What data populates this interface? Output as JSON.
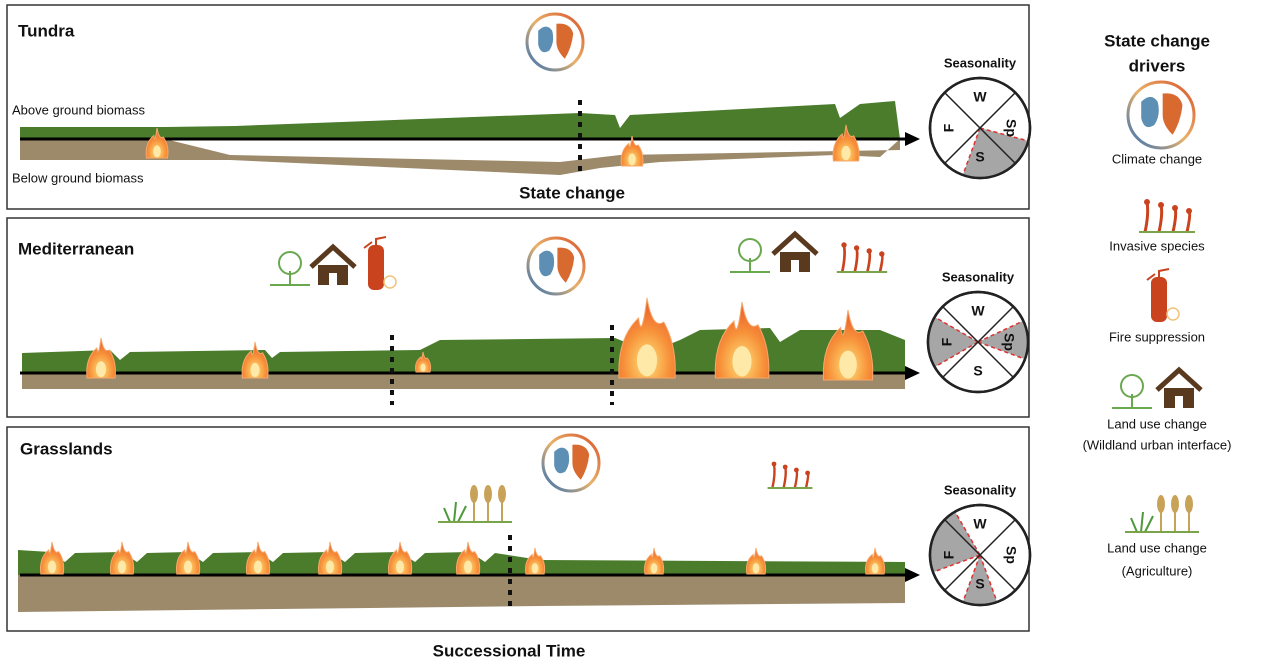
{
  "panels": [
    {
      "title": "Tundra",
      "above_label": "Above ground biomass",
      "below_label": "Below ground biomass",
      "state_change_label": "State change",
      "seasonality": {
        "title": "Seasonality",
        "seasons": [
          "W",
          "Sp",
          "S",
          "F"
        ]
      }
    },
    {
      "title": "Mediterranean",
      "seasonality": {
        "title": "Seasonality",
        "seasons": [
          "W",
          "Sp",
          "S",
          "F"
        ]
      }
    },
    {
      "title": "Grasslands",
      "seasonality": {
        "title": "Seasonality",
        "seasons": [
          "W",
          "Sp",
          "S",
          "F"
        ]
      }
    }
  ],
  "x_axis_label": "Successional Time",
  "legend": {
    "title": [
      "State change",
      "drivers"
    ],
    "items": [
      {
        "label": [
          "Climate change"
        ]
      },
      {
        "label": [
          "Invasive species"
        ]
      },
      {
        "label": [
          "Fire suppression"
        ]
      },
      {
        "label": [
          "Land use change",
          "(Wildland urban interface)"
        ]
      },
      {
        "label": [
          "Land use change",
          "(Agriculture)"
        ]
      }
    ]
  }
}
